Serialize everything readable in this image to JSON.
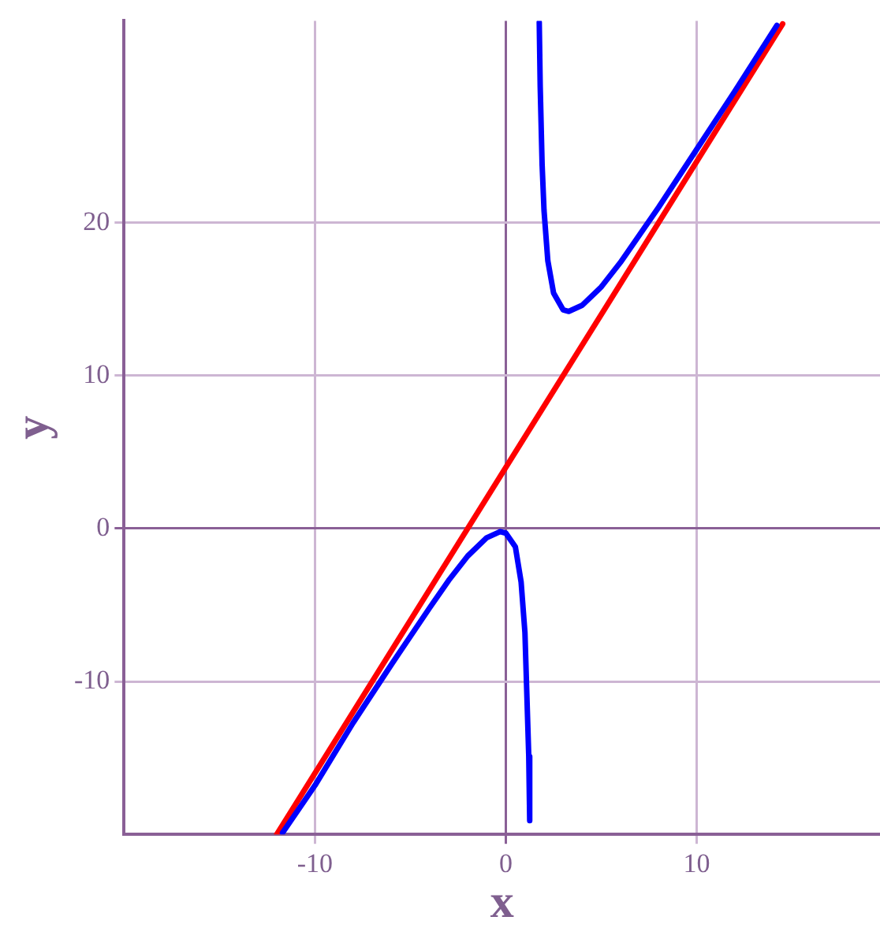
{
  "chart_data": {
    "type": "line",
    "xlabel": "x",
    "ylabel": "y",
    "xlim": [
      -20,
      19.6
    ],
    "ylim": [
      -20,
      33.2
    ],
    "xticks": [
      -10,
      0,
      10
    ],
    "yticks": [
      -10,
      0,
      10,
      20
    ],
    "grid": true,
    "marker": "none",
    "line_style": "solid",
    "series": [
      {
        "color": "#0000ff",
        "x": [
          -11.7,
          -10,
          -8,
          -6,
          -4,
          -3,
          -2,
          -1,
          -0.3,
          0,
          0.5,
          0.8,
          1.0,
          1.2,
          1.25
        ],
        "values": [
          -19.9,
          -16.8,
          -12.7,
          -8.9,
          -5.2,
          -3.4,
          -1.8,
          -0.6,
          -0.2,
          -0.3,
          -1.2,
          -3.5,
          -6.8,
          -14.9,
          -19.1
        ]
      },
      {
        "color": "#0000ff",
        "x": [
          1.75,
          1.8,
          1.9,
          2.0,
          2.2,
          2.5,
          3.0,
          3.3,
          4,
          5,
          6,
          8,
          10,
          12,
          14.2
        ],
        "values": [
          33.1,
          28.9,
          23.8,
          20.8,
          17.5,
          15.4,
          14.3,
          14.2,
          14.6,
          15.8,
          17.4,
          21.0,
          24.8,
          28.6,
          32.9
        ]
      },
      {
        "color": "#ff0000",
        "x": [
          -12,
          14.5
        ],
        "values": [
          -20,
          33
        ]
      }
    ]
  }
}
